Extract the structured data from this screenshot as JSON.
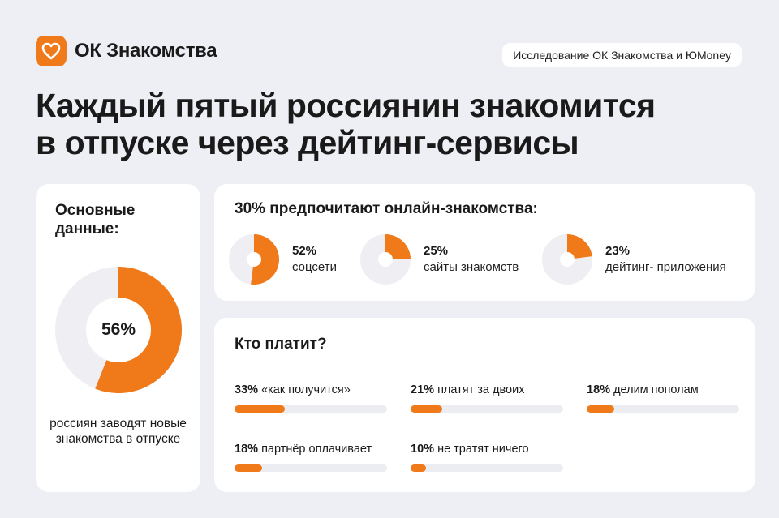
{
  "brand": {
    "name": "ОК Знакомства",
    "accent_color": "#f07a1a",
    "logo_icon": "heart-icon"
  },
  "research_badge": "Исследование ОК Знакомства и ЮMoney",
  "headline": {
    "line1": "Каждый пятый россиянин знакомится",
    "line2": "в отпуске через дейтинг-сервисы"
  },
  "main_stat": {
    "title": "Основные данные:",
    "percent_label": "56%",
    "value": 56,
    "caption": "россиян заводят новые знакомства в отпуске"
  },
  "online": {
    "title": "30% предпочитают онлайн-знакомства:",
    "items": [
      {
        "pct": "52%",
        "value": 52,
        "label": "соцсети"
      },
      {
        "pct": "25%",
        "value": 25,
        "label": "сайты знакомств"
      },
      {
        "pct": "23%",
        "value": 23,
        "label": "дейтинг- приложения"
      }
    ]
  },
  "pay": {
    "title": "Кто платит?",
    "items": [
      {
        "pct": "33%",
        "value": 33,
        "label": "«как получится»"
      },
      {
        "pct": "21%",
        "value": 21,
        "label": "платят за двоих"
      },
      {
        "pct": "18%",
        "value": 18,
        "label": "делим пополам"
      },
      {
        "pct": "18%",
        "value": 18,
        "label": "партнёр оплачивает"
      },
      {
        "pct": "10%",
        "value": 10,
        "label": "не тратят ничего"
      }
    ]
  },
  "chart_data": [
    {
      "type": "pie",
      "title": "Основные данные:",
      "categories": [
        "россиян заводят новые знакомства в отпуске"
      ],
      "values": [
        56
      ]
    },
    {
      "type": "pie",
      "title": "30% предпочитают онлайн-знакомства:",
      "categories": [
        "соцсети",
        "сайты знакомств",
        "дейтинг- приложения"
      ],
      "values": [
        52,
        25,
        23
      ]
    },
    {
      "type": "bar",
      "title": "Кто платит?",
      "categories": [
        "«как получится»",
        "платят за двоих",
        "делим пополам",
        "партнёр оплачивает",
        "не тратят ничего"
      ],
      "values": [
        33,
        21,
        18,
        18,
        10
      ],
      "ylim": [
        0,
        100
      ]
    }
  ]
}
